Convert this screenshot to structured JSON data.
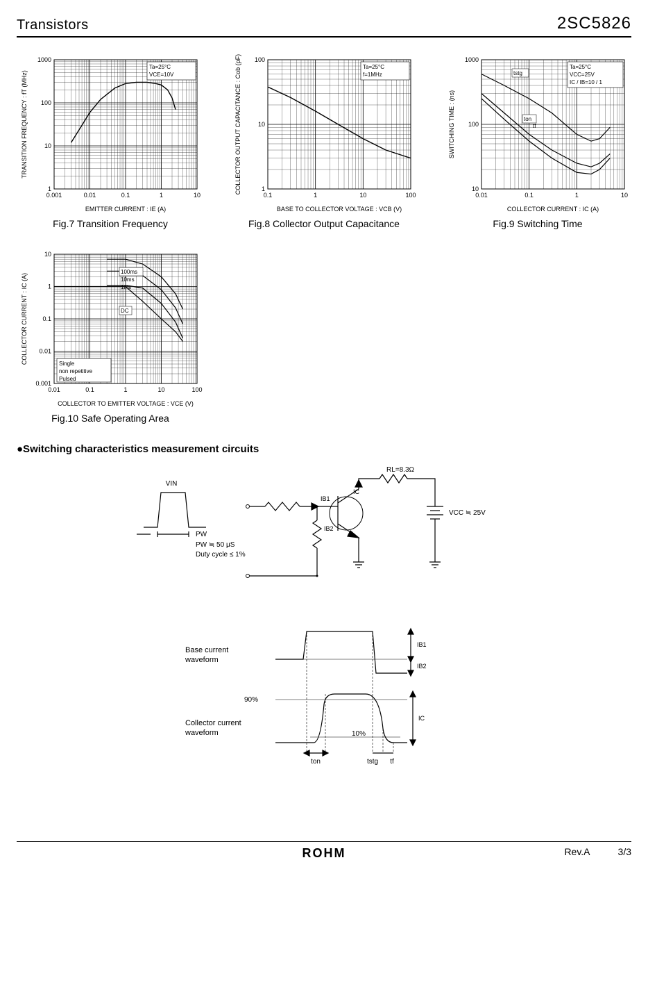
{
  "header": {
    "left": "Transistors",
    "right": "2SC5826"
  },
  "fig7": {
    "caption": "Fig.7 Transition Frequency",
    "type": "line-loglog",
    "xlabel": "EMITTER CURRENT : IE (A)",
    "ylabel": "TRANSITION FREQUENCY : fT (MHz)",
    "xlim": [
      0.001,
      10
    ],
    "ylim": [
      1,
      1000
    ],
    "xticks": [
      "0.001",
      "0.01",
      "0.1",
      "1",
      "10"
    ],
    "yticks": [
      "1",
      "10",
      "100",
      "1000"
    ],
    "inset_lines": [
      "Ta=25°C",
      "VCE=10V"
    ],
    "grid_color": "#000000",
    "line_color": "#000000",
    "line_width": 1.4,
    "background_color": "#ffffff",
    "axis_fontsize": 9,
    "data": [
      [
        0.003,
        12
      ],
      [
        0.006,
        30
      ],
      [
        0.01,
        60
      ],
      [
        0.02,
        120
      ],
      [
        0.05,
        220
      ],
      [
        0.1,
        280
      ],
      [
        0.2,
        300
      ],
      [
        0.4,
        300
      ],
      [
        0.7,
        280
      ],
      [
        1,
        260
      ],
      [
        1.5,
        200
      ],
      [
        2,
        130
      ],
      [
        2.5,
        70
      ]
    ]
  },
  "fig8": {
    "caption": "Fig.8 Collector Output Capacitance",
    "type": "line-loglog",
    "xlabel": "BASE TO COLLECTOR VOLTAGE : VCB (V)",
    "ylabel": "COLLECTOR OUTPUT CAPACITANCE : Cob (pF)",
    "xlim": [
      0.1,
      100
    ],
    "ylim": [
      1,
      100
    ],
    "xticks": [
      "0.1",
      "1",
      "10",
      "100"
    ],
    "yticks": [
      "1",
      "10",
      "100"
    ],
    "inset_lines": [
      "Ta=25°C",
      "f=1MHz"
    ],
    "grid_color": "#000000",
    "line_color": "#000000",
    "line_width": 1.4,
    "background_color": "#ffffff",
    "axis_fontsize": 9,
    "data": [
      [
        0.1,
        38
      ],
      [
        0.3,
        26
      ],
      [
        1,
        16
      ],
      [
        3,
        10
      ],
      [
        10,
        6
      ],
      [
        30,
        4
      ],
      [
        100,
        3
      ]
    ]
  },
  "fig9": {
    "caption": "Fig.9 Switching Time",
    "type": "multiline-loglog",
    "xlabel": "COLLECTOR  CURRENT : IC (A)",
    "ylabel": "SWITCHING  TIME : (ns)",
    "xlim": [
      0.01,
      10
    ],
    "ylim": [
      10,
      1000
    ],
    "xticks": [
      "0.01",
      "0.1",
      "1",
      "10"
    ],
    "yticks": [
      "10",
      "100",
      "1000"
    ],
    "inset_lines": [
      "Ta=25°C",
      "VCC=25V",
      "IC / IB=10 / 1"
    ],
    "series_labels": [
      "tstg",
      "ton",
      "tf"
    ],
    "grid_color": "#000000",
    "line_color": "#000000",
    "line_width": 1.2,
    "background_color": "#ffffff",
    "axis_fontsize": 9,
    "series": {
      "tstg": [
        [
          0.01,
          600
        ],
        [
          0.03,
          400
        ],
        [
          0.1,
          250
        ],
        [
          0.3,
          150
        ],
        [
          1,
          70
        ],
        [
          2,
          55
        ],
        [
          3,
          60
        ],
        [
          5,
          90
        ]
      ],
      "ton": [
        [
          0.01,
          300
        ],
        [
          0.03,
          150
        ],
        [
          0.1,
          70
        ],
        [
          0.3,
          40
        ],
        [
          1,
          25
        ],
        [
          2,
          22
        ],
        [
          3,
          25
        ],
        [
          5,
          35
        ]
      ],
      "tf": [
        [
          0.01,
          250
        ],
        [
          0.03,
          120
        ],
        [
          0.1,
          55
        ],
        [
          0.3,
          30
        ],
        [
          1,
          18
        ],
        [
          2,
          17
        ],
        [
          3,
          20
        ],
        [
          5,
          30
        ]
      ]
    }
  },
  "fig10": {
    "caption": "Fig.10 Safe Operating Area",
    "type": "multiline-loglog",
    "xlabel": "COLLECTOR  TO  EMITTER  VOLTAGE : VCE (V)",
    "ylabel": "COLLECTOR  CURRENT : IC (A)",
    "xlim": [
      0.01,
      100
    ],
    "ylim": [
      0.001,
      10
    ],
    "xticks": [
      "0.01",
      "0.1",
      "1",
      "10",
      "100"
    ],
    "yticks": [
      "0.001",
      "0.01",
      "0.1",
      "1",
      "10"
    ],
    "inset_lines": [
      "Single",
      "non repetitive",
      "Pulsed"
    ],
    "series_labels": [
      "100ms",
      "10ms",
      "1ms",
      "DC"
    ],
    "grid_color": "#000000",
    "line_color": "#000000",
    "line_width": 1.2,
    "background_color": "#ffffff",
    "axis_fontsize": 9,
    "series": {
      "1ms": [
        [
          0.3,
          7
        ],
        [
          1,
          7
        ],
        [
          3,
          5
        ],
        [
          10,
          2
        ],
        [
          25,
          0.6
        ],
        [
          40,
          0.2
        ]
      ],
      "10ms": [
        [
          0.3,
          3
        ],
        [
          1,
          3
        ],
        [
          3,
          2.2
        ],
        [
          10,
          0.8
        ],
        [
          25,
          0.22
        ],
        [
          40,
          0.07
        ]
      ],
      "100ms": [
        [
          0.3,
          1.1
        ],
        [
          1,
          1.1
        ],
        [
          3,
          0.9
        ],
        [
          10,
          0.3
        ],
        [
          25,
          0.08
        ],
        [
          40,
          0.025
        ]
      ],
      "DC": [
        [
          0.01,
          1
        ],
        [
          0.3,
          1
        ],
        [
          1,
          1
        ],
        [
          3,
          0.35
        ],
        [
          10,
          0.1
        ],
        [
          25,
          0.04
        ],
        [
          40,
          0.02
        ]
      ]
    }
  },
  "section": {
    "heading": "●Switching characteristics measurement circuits"
  },
  "circuit": {
    "labels": {
      "vin": "VIN",
      "pw": "PW",
      "pw_eq": "PW ≒ 50 μS",
      "duty": "Duty cycle ≤ 1%",
      "ib1": "IB1",
      "ib2": "IB2",
      "ic": "IC",
      "rl": "RL=8.3Ω",
      "vcc": "VCC ≒ 25V"
    },
    "line_color": "#000000",
    "line_width": 1.2
  },
  "waveform": {
    "labels": {
      "base": "Base current waveform",
      "collector": "Collector current waveform",
      "ninety": "90%",
      "ten": "10%",
      "ib1": "IB1",
      "ib2": "IB2",
      "ic": "IC",
      "ton": "ton",
      "tstg": "tstg",
      "tf": "tf"
    },
    "line_color": "#000000",
    "line_width": 1.2
  },
  "footer": {
    "rev": "Rev.A",
    "page": "3/3",
    "logo": "ROHM"
  }
}
